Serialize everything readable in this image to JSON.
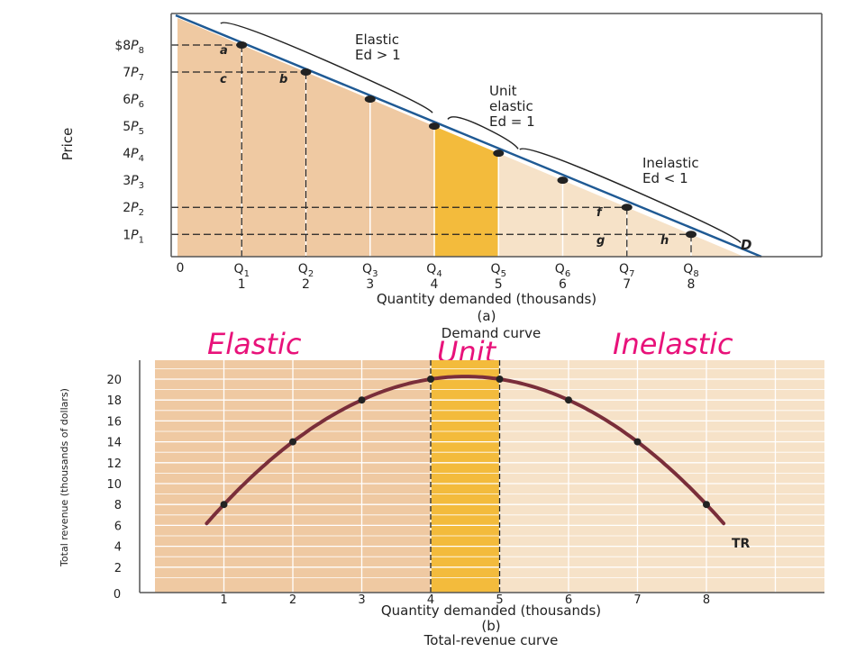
{
  "colors": {
    "region_elastic": "#efc9a2",
    "region_inelastic": "#f6e2c8",
    "region_unit": "#f3bb3c",
    "demand_line": "#1f5a94",
    "tr_curve": "#7a2e3a",
    "grid": "#ffffff",
    "handwriting": "#e8127a"
  },
  "annotations": {
    "elastic": "Elastic",
    "unit": "Unit",
    "inelastic": "Inelastic"
  },
  "chart_data": [
    {
      "type": "line",
      "title": "Demand curve",
      "panel_label": "(a)",
      "xlabel": "Quantity demanded (thousands)",
      "ylabel": "Price",
      "xlim": [
        0,
        10
      ],
      "ylim": [
        0,
        9
      ],
      "origin_label": "0",
      "x_ticks": [
        {
          "value": 1,
          "symbol": "Q1",
          "number": "1"
        },
        {
          "value": 2,
          "symbol": "Q2",
          "number": "2"
        },
        {
          "value": 3,
          "symbol": "Q3",
          "number": "3"
        },
        {
          "value": 4,
          "symbol": "Q4",
          "number": "4"
        },
        {
          "value": 5,
          "symbol": "Q5",
          "number": "5"
        },
        {
          "value": 6,
          "symbol": "Q6",
          "number": "6"
        },
        {
          "value": 7,
          "symbol": "Q7",
          "number": "7"
        },
        {
          "value": 8,
          "symbol": "Q8",
          "number": "8"
        }
      ],
      "y_ticks": [
        {
          "value": 8,
          "label": "$8",
          "symbol": "P8"
        },
        {
          "value": 7,
          "label": "7",
          "symbol": "P7"
        },
        {
          "value": 6,
          "label": "6",
          "symbol": "P6"
        },
        {
          "value": 5,
          "label": "5",
          "symbol": "P5"
        },
        {
          "value": 4,
          "label": "4",
          "symbol": "P4"
        },
        {
          "value": 3,
          "label": "3",
          "symbol": "P3"
        },
        {
          "value": 2,
          "label": "2",
          "symbol": "P2"
        },
        {
          "value": 1,
          "label": "1",
          "symbol": "P1"
        }
      ],
      "series": [
        {
          "name": "D",
          "x": [
            1,
            2,
            3,
            4,
            5,
            6,
            7,
            8
          ],
          "y": [
            8,
            7,
            6,
            5,
            4,
            3,
            2,
            1
          ]
        }
      ],
      "shaded_regions": [
        {
          "from": 0,
          "to": 4,
          "type": "elastic"
        },
        {
          "from": 4,
          "to": 5,
          "type": "unit"
        },
        {
          "from": 5,
          "to": 10,
          "type": "inelastic"
        }
      ],
      "segment_labels": [
        {
          "lines": [
            "Elastic",
            "Ed > 1"
          ]
        },
        {
          "lines": [
            "Unit",
            "elastic",
            "Ed = 1"
          ]
        },
        {
          "lines": [
            "Inelastic",
            "Ed < 1"
          ]
        }
      ],
      "area_letters": [
        "a",
        "b",
        "c",
        "f",
        "g",
        "h"
      ]
    },
    {
      "type": "line",
      "title": "Total-revenue curve",
      "panel_label": "(b)",
      "xlabel": "Quantity demanded (thousands)",
      "ylabel": "Total revenue (thousands of dollars)",
      "xlim": [
        0,
        10
      ],
      "ylim": [
        0,
        22
      ],
      "origin_label": "0",
      "x_ticks": [
        1,
        2,
        3,
        4,
        5,
        6,
        7,
        8
      ],
      "y_ticks": [
        2,
        4,
        6,
        8,
        10,
        12,
        14,
        16,
        18,
        20
      ],
      "series": [
        {
          "name": "TR",
          "x": [
            1,
            2,
            3,
            4,
            5,
            6,
            7,
            8
          ],
          "y": [
            8,
            14,
            18,
            20,
            20,
            18,
            14,
            8
          ]
        }
      ],
      "shaded_regions": [
        {
          "from": 0,
          "to": 4,
          "type": "elastic"
        },
        {
          "from": 4,
          "to": 5,
          "type": "unit"
        },
        {
          "from": 5,
          "to": 10,
          "type": "inelastic"
        }
      ]
    }
  ]
}
